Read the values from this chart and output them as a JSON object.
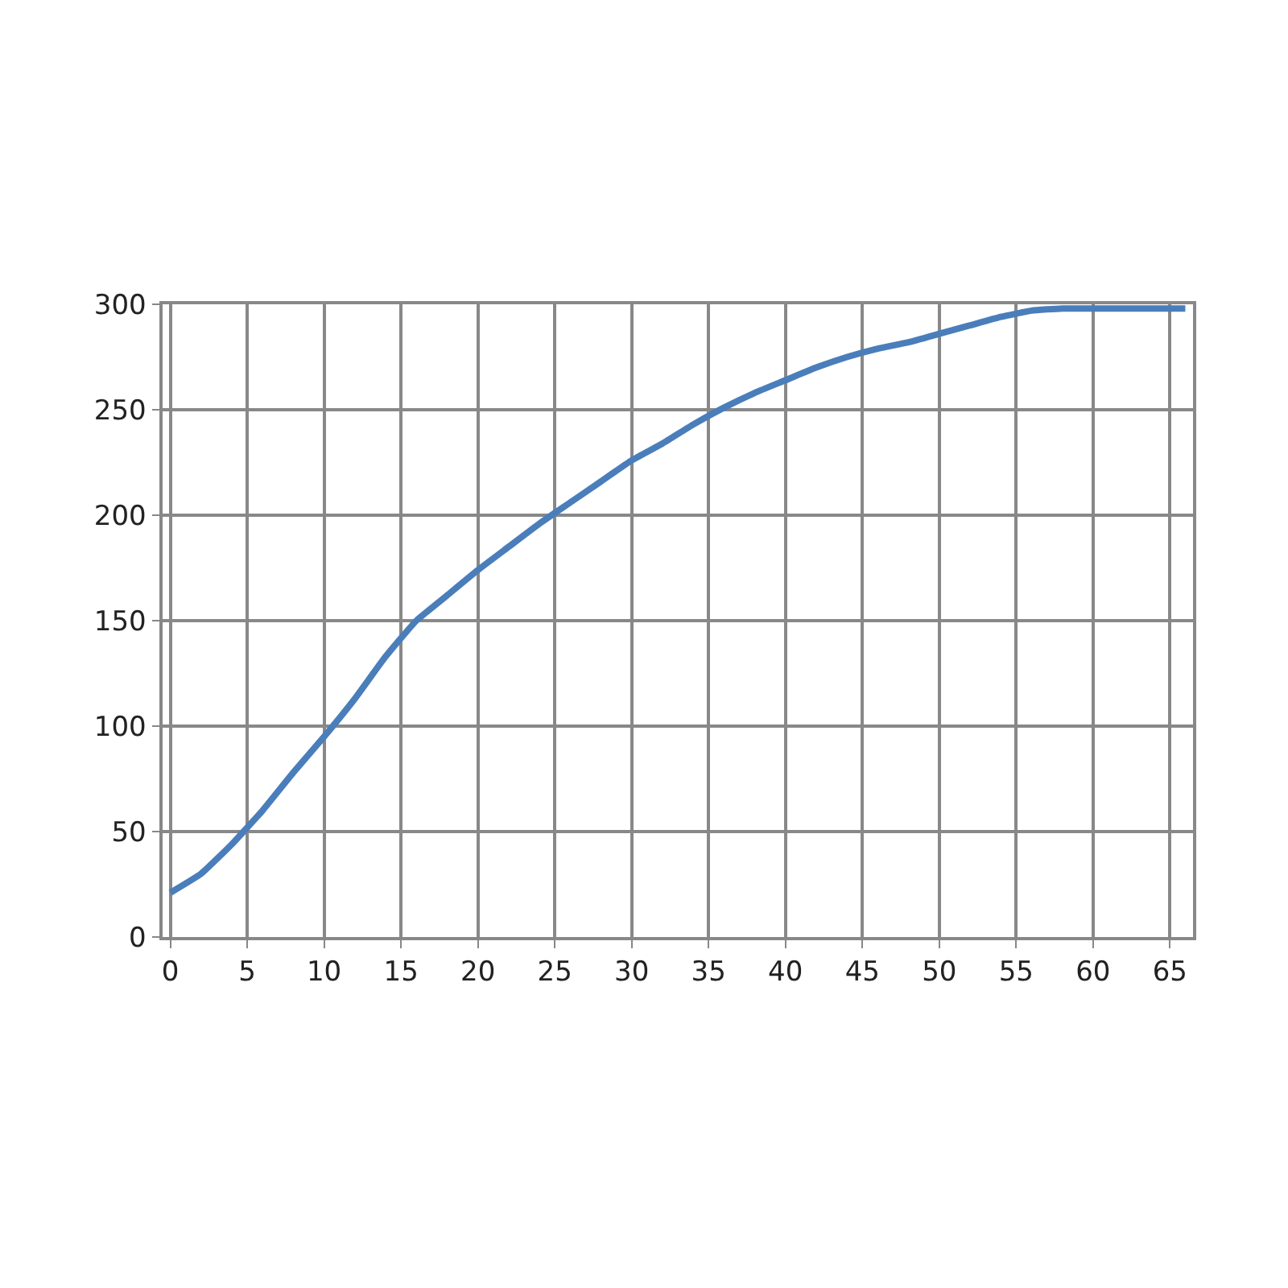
{
  "chart_data": {
    "type": "line",
    "x": [
      0,
      2,
      4,
      6,
      8,
      10,
      12,
      14,
      16,
      18,
      20,
      22,
      24,
      26,
      28,
      30,
      32,
      34,
      36,
      38,
      40,
      42,
      44,
      46,
      48,
      50,
      52,
      54,
      56,
      58,
      60,
      62,
      64,
      66
    ],
    "series": [
      {
        "color": "#4a7ebb",
        "values": [
          21,
          30,
          44,
          60,
          78,
          95,
          113,
          133,
          150,
          162,
          174,
          185,
          196,
          206,
          216,
          226,
          234,
          243,
          251,
          258,
          264,
          270,
          275,
          279,
          282,
          286,
          290,
          294,
          297,
          298,
          298,
          298,
          298,
          298
        ]
      }
    ],
    "xlim": [
      -0.5,
      66.5
    ],
    "xticks": [
      0,
      5,
      10,
      15,
      20,
      25,
      30,
      35,
      40,
      45,
      50,
      55,
      60,
      65
    ],
    "ylim": [
      0,
      300
    ],
    "yticks": [
      0,
      50,
      100,
      150,
      200,
      250,
      300
    ],
    "grid": true,
    "marker": "none",
    "line_style": "solid"
  }
}
